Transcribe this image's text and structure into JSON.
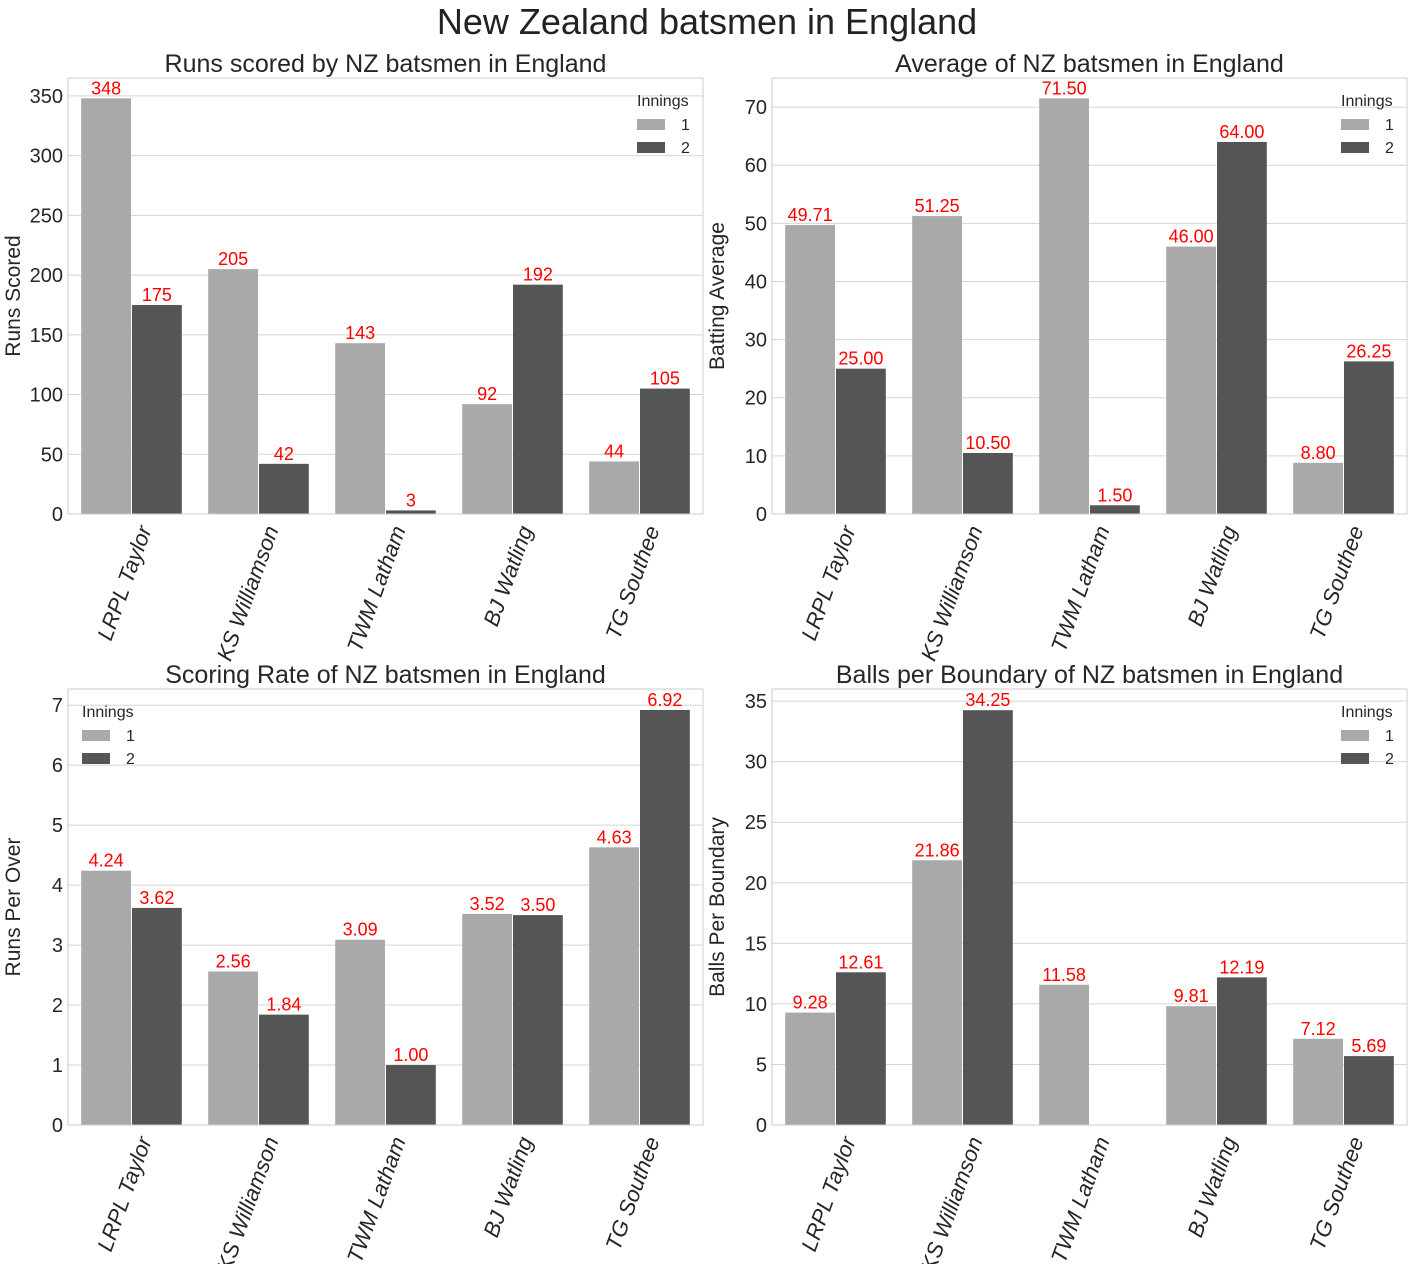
{
  "figure": {
    "title": "New Zealand batsmen in England"
  },
  "colors": {
    "innings_1": "#a9a9a9",
    "innings_2": "#555555",
    "label": "#ff0000",
    "grid": "#d5d5d5",
    "frame": "#cccccc"
  },
  "chart_data": [
    {
      "type": "bar",
      "title": "Runs scored by NZ batsmen in England",
      "ylabel": "Runs Scored",
      "xlabel": "",
      "categories": [
        "LRPL Taylor",
        "KS Williamson",
        "TWM Latham",
        "BJ Watling",
        "TG Southee"
      ],
      "series": [
        {
          "name": "1",
          "values": [
            348,
            205,
            143,
            92,
            44
          ],
          "labels": [
            "348",
            "205",
            "143",
            "92",
            "44"
          ]
        },
        {
          "name": "2",
          "values": [
            175,
            42,
            3,
            192,
            105
          ],
          "labels": [
            "175",
            "42",
            "3",
            "192",
            "105"
          ]
        }
      ],
      "ylim": [
        0,
        365
      ],
      "yticks": [
        0,
        50,
        100,
        150,
        200,
        250,
        300,
        350
      ],
      "legend": {
        "title": "Innings",
        "position": "top-right"
      },
      "grid": true
    },
    {
      "type": "bar",
      "title": "Average of NZ batsmen in England",
      "ylabel": "Batting Average",
      "xlabel": "",
      "categories": [
        "LRPL Taylor",
        "KS Williamson",
        "TWM Latham",
        "BJ Watling",
        "TG Southee"
      ],
      "series": [
        {
          "name": "1",
          "values": [
            49.71,
            51.25,
            71.5,
            46.0,
            8.8
          ],
          "labels": [
            "49.71",
            "51.25",
            "71.50",
            "46.00",
            "8.80"
          ]
        },
        {
          "name": "2",
          "values": [
            25.0,
            10.5,
            1.5,
            64.0,
            26.25
          ],
          "labels": [
            "25.00",
            "10.50",
            "1.50",
            "64.00",
            "26.25"
          ]
        }
      ],
      "ylim": [
        0,
        75
      ],
      "yticks": [
        0,
        10,
        20,
        30,
        40,
        50,
        60,
        70
      ],
      "legend": {
        "title": "Innings",
        "position": "top-right"
      },
      "grid": true
    },
    {
      "type": "bar",
      "title": "Scoring Rate of NZ batsmen in England",
      "ylabel": "Runs Per Over",
      "xlabel": "",
      "categories": [
        "LRPL Taylor",
        "KS Williamson",
        "TWM Latham",
        "BJ Watling",
        "TG Southee"
      ],
      "series": [
        {
          "name": "1",
          "values": [
            4.24,
            2.56,
            3.09,
            3.52,
            4.63
          ],
          "labels": [
            "4.24",
            "2.56",
            "3.09",
            "3.52",
            "4.63"
          ]
        },
        {
          "name": "2",
          "values": [
            3.62,
            1.84,
            1.0,
            3.5,
            6.92
          ],
          "labels": [
            "3.62",
            "1.84",
            "1.00",
            "3.50",
            "6.92"
          ]
        }
      ],
      "ylim": [
        0,
        7.27
      ],
      "yticks": [
        0,
        1,
        2,
        3,
        4,
        5,
        6,
        7
      ],
      "legend": {
        "title": "Innings",
        "position": "top-left"
      },
      "grid": true
    },
    {
      "type": "bar",
      "title": "Balls per Boundary of NZ batsmen in England",
      "ylabel": "Balls Per Boundary",
      "xlabel": "",
      "categories": [
        "LRPL Taylor",
        "KS Williamson",
        "TWM Latham",
        "BJ Watling",
        "TG Southee"
      ],
      "series": [
        {
          "name": "1",
          "values": [
            9.28,
            21.86,
            11.58,
            9.81,
            7.12
          ],
          "labels": [
            "9.28",
            "21.86",
            "11.58",
            "9.81",
            "7.12"
          ]
        },
        {
          "name": "2",
          "values": [
            12.61,
            34.25,
            null,
            12.19,
            5.69
          ],
          "labels": [
            "12.61",
            "34.25",
            "",
            "12.19",
            "5.69"
          ]
        }
      ],
      "ylim": [
        0,
        36
      ],
      "yticks": [
        0,
        5,
        10,
        15,
        20,
        25,
        30,
        35
      ],
      "legend": {
        "title": "Innings",
        "position": "top-right"
      },
      "grid": true
    }
  ]
}
